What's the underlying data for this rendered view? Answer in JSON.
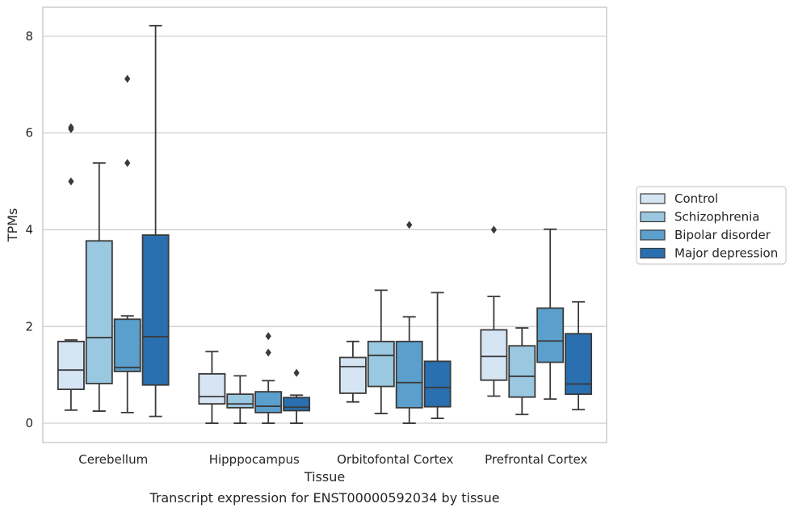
{
  "chart_data": {
    "type": "box",
    "title": "",
    "caption": "Transcript expression for ENST00000592034 by tissue",
    "xlabel": "Tissue",
    "ylabel": "TPMs",
    "ylim": [
      -0.4,
      8.6
    ],
    "yticks": [
      0,
      2,
      4,
      6,
      8
    ],
    "grid": true,
    "legend_position": "right",
    "categories": [
      "Cerebellum",
      "Hipppocampus",
      "Orbitofontal Cortex",
      "Prefrontal Cortex"
    ],
    "series": [
      {
        "name": "Control",
        "color": "#d6e5f4",
        "boxes": [
          {
            "whislo": 0.27,
            "q1": 0.7,
            "med": 1.1,
            "q3": 1.69,
            "whishi": 1.72,
            "fliers": [
              5.0,
              6.08,
              6.12
            ]
          },
          {
            "whislo": 0.0,
            "q1": 0.4,
            "med": 0.55,
            "q3": 1.02,
            "whishi": 1.48,
            "fliers": []
          },
          {
            "whislo": 0.44,
            "q1": 0.62,
            "med": 1.17,
            "q3": 1.36,
            "whishi": 1.69,
            "fliers": []
          },
          {
            "whislo": 0.56,
            "q1": 0.89,
            "med": 1.38,
            "q3": 1.93,
            "whishi": 2.62,
            "fliers": [
              4.0
            ]
          }
        ]
      },
      {
        "name": "Schizophrenia",
        "color": "#9ac8e0",
        "boxes": [
          {
            "whislo": 0.25,
            "q1": 0.82,
            "med": 1.77,
            "q3": 3.77,
            "whishi": 5.38,
            "fliers": []
          },
          {
            "whislo": 0.0,
            "q1": 0.32,
            "med": 0.4,
            "q3": 0.6,
            "whishi": 0.98,
            "fliers": []
          },
          {
            "whislo": 0.2,
            "q1": 0.76,
            "med": 1.4,
            "q3": 1.69,
            "whishi": 2.75,
            "fliers": []
          },
          {
            "whislo": 0.18,
            "q1": 0.54,
            "med": 0.97,
            "q3": 1.6,
            "whishi": 1.97,
            "fliers": []
          }
        ]
      },
      {
        "name": "Bipolar disorder",
        "color": "#5b9fcc",
        "boxes": [
          {
            "whislo": 0.22,
            "q1": 1.07,
            "med": 1.15,
            "q3": 2.15,
            "whishi": 2.22,
            "fliers": [
              5.38,
              7.12
            ]
          },
          {
            "whislo": 0.0,
            "q1": 0.22,
            "med": 0.35,
            "q3": 0.65,
            "whishi": 0.88,
            "fliers": [
              1.46,
              1.8
            ]
          },
          {
            "whislo": 0.0,
            "q1": 0.32,
            "med": 0.84,
            "q3": 1.69,
            "whishi": 2.2,
            "fliers": [
              4.1
            ]
          },
          {
            "whislo": 0.5,
            "q1": 1.26,
            "med": 1.7,
            "q3": 2.38,
            "whishi": 4.01,
            "fliers": []
          }
        ]
      },
      {
        "name": "Major depression",
        "color": "#2a6faf",
        "boxes": [
          {
            "whislo": 0.14,
            "q1": 0.79,
            "med": 1.79,
            "q3": 3.89,
            "whishi": 8.22,
            "fliers": []
          },
          {
            "whislo": 0.0,
            "q1": 0.26,
            "med": 0.33,
            "q3": 0.53,
            "whishi": 0.58,
            "fliers": [
              1.04
            ]
          },
          {
            "whislo": 0.1,
            "q1": 0.34,
            "med": 0.74,
            "q3": 1.28,
            "whishi": 2.7,
            "fliers": []
          },
          {
            "whislo": 0.28,
            "q1": 0.6,
            "med": 0.81,
            "q3": 1.85,
            "whishi": 2.51,
            "fliers": []
          }
        ]
      }
    ]
  }
}
